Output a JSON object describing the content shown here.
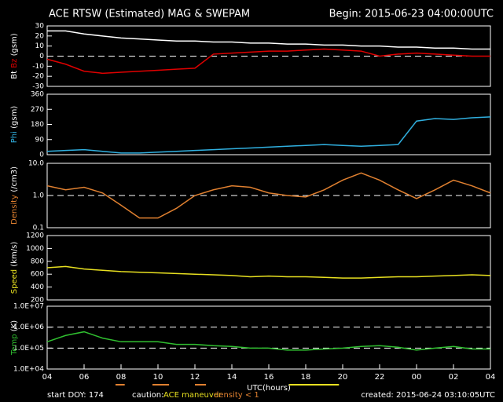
{
  "header": {
    "title": "ACE RTSW (Estimated) MAG & SWEPAM",
    "begin": "Begin: 2015-06-23 04:00:00UTC"
  },
  "footer": {
    "start": "start DOY: 174",
    "caution": "caution:",
    "maneuver": "ACE maneuver",
    "density": "density < 1",
    "created": "created: 2015-06-24 03:10:05UTC",
    "maneuver_color": "#e8e020",
    "density_color": "#e08030",
    "maneuver_spans": [
      [
        13.1,
        15.8
      ]
    ],
    "density_spans": [
      [
        3.7,
        4.2
      ],
      [
        5.7,
        6.6
      ],
      [
        8.0,
        8.6
      ]
    ]
  },
  "chart_data": [
    {
      "type": "line",
      "unit": "(gsm)",
      "xlim": [
        0,
        24
      ],
      "ylim": [
        -30,
        30
      ],
      "yticks": [
        -30,
        -20,
        -10,
        0,
        10,
        20,
        30
      ],
      "ref_lines": [
        0
      ],
      "series": [
        {
          "name": "Bt",
          "color": "#ffffff",
          "x": [
            0,
            1,
            2,
            3,
            4,
            5,
            6,
            7,
            8,
            9,
            10,
            11,
            12,
            13,
            14,
            15,
            16,
            17,
            18,
            19,
            20,
            21,
            22,
            23,
            24
          ],
          "values": [
            25,
            25,
            22,
            20,
            18,
            17,
            16,
            15,
            15,
            14,
            14,
            13,
            13,
            12,
            12,
            11,
            11,
            10,
            10,
            9,
            9,
            8,
            8,
            7,
            7
          ]
        },
        {
          "name": "Bz",
          "color": "#e00000",
          "x": [
            0,
            1,
            2,
            3,
            4,
            5,
            6,
            7,
            8,
            9,
            10,
            11,
            12,
            13,
            14,
            15,
            16,
            17,
            18,
            19,
            20,
            21,
            22,
            23,
            24
          ],
          "values": [
            -3,
            -8,
            -15,
            -17,
            -16,
            -15,
            -14,
            -13,
            -12,
            2,
            3,
            4,
            5,
            5,
            6,
            7,
            6,
            5,
            0,
            2,
            3,
            2,
            1,
            0,
            0
          ]
        }
      ]
    },
    {
      "type": "line",
      "unit": "(gsm)",
      "xlim": [
        0,
        24
      ],
      "ylim": [
        0,
        360
      ],
      "yticks": [
        0,
        90,
        180,
        270,
        360
      ],
      "ref_lines": [],
      "series": [
        {
          "name": "Phi",
          "color": "#30b0e0",
          "x": [
            0,
            1,
            2,
            3,
            4,
            5,
            6,
            7,
            8,
            9,
            10,
            11,
            12,
            13,
            14,
            15,
            16,
            17,
            18,
            19,
            20,
            21,
            22,
            23,
            24
          ],
          "values": [
            20,
            25,
            30,
            20,
            10,
            10,
            15,
            20,
            25,
            30,
            35,
            40,
            45,
            50,
            55,
            60,
            55,
            50,
            55,
            60,
            200,
            215,
            210,
            220,
            225
          ]
        }
      ]
    },
    {
      "type": "line",
      "unit": "(/cm3)",
      "log": true,
      "xlim": [
        0,
        24
      ],
      "ylim": [
        0.1,
        10
      ],
      "yticks": [
        0.1,
        {
          "value": 1,
          "label": "1.0"
        },
        {
          "value": 10,
          "label": "10.0"
        }
      ],
      "ref_lines": [
        1
      ],
      "series": [
        {
          "name": "Density",
          "color": "#e08030",
          "x": [
            0,
            1,
            2,
            3,
            4,
            5,
            6,
            7,
            8,
            9,
            10,
            11,
            12,
            13,
            14,
            15,
            16,
            17,
            18,
            19,
            20,
            21,
            22,
            23,
            24
          ],
          "values": [
            2,
            1.5,
            1.8,
            1.2,
            0.5,
            0.2,
            0.2,
            0.4,
            1,
            1.5,
            2,
            1.8,
            1.2,
            1,
            0.9,
            1.5,
            3,
            5,
            3,
            1.5,
            0.8,
            1.5,
            3,
            2,
            1.2
          ]
        }
      ]
    },
    {
      "type": "line",
      "unit": "(km/s)",
      "xlim": [
        0,
        24
      ],
      "ylim": [
        200,
        1200
      ],
      "yticks": [
        200,
        400,
        600,
        800,
        1000,
        1200
      ],
      "ref_lines": [],
      "series": [
        {
          "name": "Speed",
          "color": "#e8e020",
          "x": [
            0,
            1,
            2,
            3,
            4,
            5,
            6,
            7,
            8,
            9,
            10,
            11,
            12,
            13,
            14,
            15,
            16,
            17,
            18,
            19,
            20,
            21,
            22,
            23,
            24
          ],
          "values": [
            700,
            720,
            680,
            660,
            640,
            630,
            620,
            610,
            600,
            590,
            580,
            560,
            570,
            560,
            560,
            550,
            540,
            540,
            550,
            560,
            560,
            570,
            580,
            590,
            580
          ]
        }
      ]
    },
    {
      "type": "line",
      "unit": "(K)",
      "log": true,
      "xlim": [
        0,
        24
      ],
      "ylim": [
        10000,
        10000000
      ],
      "yticks": [
        {
          "value": 10000,
          "label": "1.0E+04"
        },
        {
          "value": 100000,
          "label": "1.0E+05"
        },
        {
          "value": 1000000,
          "label": "1.0E+06"
        },
        {
          "value": 10000000,
          "label": "1.0E+07"
        }
      ],
      "ref_lines": [
        100000,
        1000000
      ],
      "xlabel": "UTC(hours)",
      "xticks": [
        {
          "value": 0,
          "label": "04"
        },
        {
          "value": 2,
          "label": "06"
        },
        {
          "value": 4,
          "label": "08"
        },
        {
          "value": 6,
          "label": "10"
        },
        {
          "value": 8,
          "label": "12"
        },
        {
          "value": 10,
          "label": "14"
        },
        {
          "value": 12,
          "label": "16"
        },
        {
          "value": 14,
          "label": "18"
        },
        {
          "value": 16,
          "label": "20"
        },
        {
          "value": 18,
          "label": "22"
        },
        {
          "value": 20,
          "label": "00"
        },
        {
          "value": 22,
          "label": "02"
        },
        {
          "value": 24,
          "label": "04"
        }
      ],
      "series": [
        {
          "name": "Temp",
          "color": "#30c030",
          "x": [
            0,
            1,
            2,
            3,
            4,
            5,
            6,
            7,
            8,
            9,
            10,
            11,
            12,
            13,
            14,
            15,
            16,
            17,
            18,
            19,
            20,
            21,
            22,
            23,
            24
          ],
          "values": [
            200000,
            400000,
            600000,
            300000,
            200000,
            200000,
            200000,
            150000,
            150000,
            130000,
            120000,
            100000,
            100000,
            80000,
            80000,
            90000,
            100000,
            120000,
            130000,
            110000,
            80000,
            100000,
            120000,
            90000,
            90000
          ]
        }
      ]
    }
  ]
}
